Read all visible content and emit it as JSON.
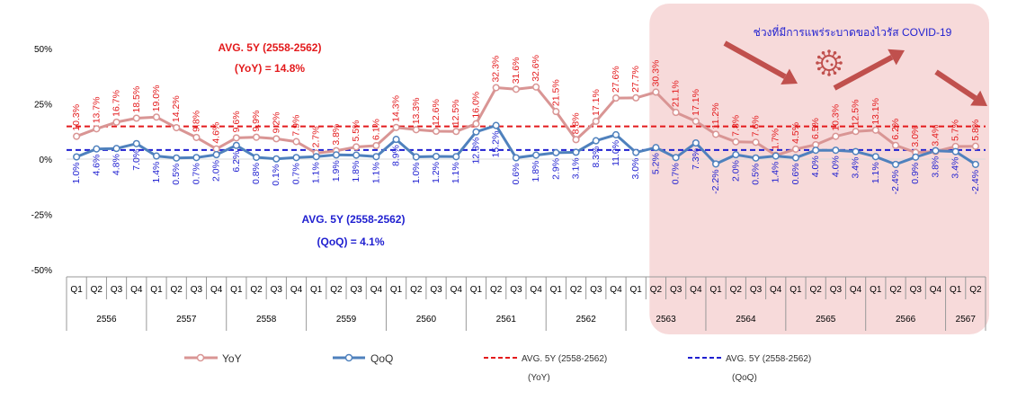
{
  "colors": {
    "yoy": "#d99594",
    "qoq": "#4f81bd",
    "avg_yoy": "#e31a1c",
    "avg_qoq": "#1f1fd0",
    "covid_bg": "#f7dada",
    "yoy_label": "#e31a1c",
    "qoq_label": "#1f1fd0",
    "covid_text": "#1f1fd0",
    "arrow": "#c0504d",
    "virus": "#c0504d"
  },
  "annotations": {
    "avg_yoy_title": "AVG. 5Y (2558-2562)",
    "avg_yoy_value": "(YoY) = 14.8%",
    "avg_qoq_title": "AVG. 5Y (2558-2562)",
    "avg_qoq_value": "(QoQ) = 4.1%",
    "covid_label": "ช่วงที่มีการแพร่ระบาดของไวรัส COVID-19"
  },
  "legend": {
    "yoy": "YoY",
    "qoq": "QoQ",
    "avg_yoy_line1": "AVG. 5Y (2558-2562)",
    "avg_yoy_line2": "(YoY)",
    "avg_qoq_line1": "AVG. 5Y (2558-2562)",
    "avg_qoq_line2": "(QoQ)"
  },
  "chart_data": {
    "type": "line",
    "y_ticks": [
      "50%",
      "25%",
      "0%",
      "-25%",
      "-50%"
    ],
    "ylim": [
      -50,
      50
    ],
    "quarters": [
      "Q1",
      "Q2",
      "Q3",
      "Q4",
      "Q1",
      "Q2",
      "Q3",
      "Q4",
      "Q1",
      "Q2",
      "Q3",
      "Q4",
      "Q1",
      "Q2",
      "Q3",
      "Q4",
      "Q1",
      "Q2",
      "Q3",
      "Q4",
      "Q1",
      "Q2",
      "Q3",
      "Q4",
      "Q1",
      "Q2",
      "Q3",
      "Q4",
      "Q1",
      "Q2",
      "Q3",
      "Q4",
      "Q1",
      "Q2",
      "Q3",
      "Q4",
      "Q1",
      "Q2",
      "Q3",
      "Q4",
      "Q1",
      "Q2",
      "Q3",
      "Q4",
      "Q1",
      "Q2"
    ],
    "years": [
      "2556",
      "2557",
      "2558",
      "2559",
      "2560",
      "2561",
      "2562",
      "2563",
      "2564",
      "2565",
      "2566",
      "2567"
    ],
    "series": [
      {
        "name": "YoY",
        "values": [
          10.3,
          13.7,
          16.7,
          18.5,
          19.0,
          14.2,
          9.8,
          4.6,
          9.6,
          9.9,
          9.2,
          7.9,
          2.7,
          3.8,
          5.5,
          6.1,
          14.3,
          13.3,
          12.6,
          12.5,
          16.0,
          32.3,
          31.6,
          32.6,
          21.5,
          8.8,
          17.1,
          27.6,
          27.7,
          30.3,
          21.1,
          17.1,
          11.2,
          7.8,
          7.6,
          1.7,
          4.5,
          6.5,
          10.3,
          12.5,
          13.1,
          6.2,
          3.0,
          3.4,
          5.7,
          5.8
        ],
        "labels": [
          "10.3%",
          "13.7%",
          "16.7%",
          "18.5%",
          "19.0%",
          "14.2%",
          "9.8%",
          "4.6%",
          "9.6%",
          "9.9%",
          "9.2%",
          "7.9%",
          "2.7%",
          "3.8%",
          "5.5%",
          "6.1%",
          "14.3%",
          "13.3%",
          "12.6%",
          "12.5%",
          "16.0%",
          "32.3%",
          "31.6%",
          "32.6%",
          "21.5%",
          "8.8%",
          "17.1%",
          "27.6%",
          "27.7%",
          "30.3%",
          "21.1%",
          "17.1%",
          "11.2%",
          "7.8%",
          "7.6%",
          "1.7%",
          "4.5%",
          "6.5%",
          "10.3%",
          "12.5%",
          "13.1%",
          "6.2%",
          "3.0%",
          "3.4%",
          "5.7%",
          "5.8%"
        ]
      },
      {
        "name": "QoQ",
        "values": [
          1.0,
          4.6,
          4.8,
          7.0,
          1.4,
          0.5,
          0.7,
          2.0,
          6.2,
          0.8,
          0.1,
          0.7,
          1.1,
          1.9,
          1.8,
          1.1,
          8.9,
          1.0,
          1.2,
          1.1,
          12.3,
          15.2,
          0.6,
          1.8,
          2.9,
          3.1,
          8.3,
          11.0,
          3.0,
          5.2,
          0.7,
          7.3,
          -2.2,
          2.0,
          0.5,
          1.4,
          0.6,
          4.0,
          4.0,
          3.4,
          1.1,
          -2.4,
          0.9,
          3.8,
          3.4,
          -2.4
        ],
        "labels": [
          "1.0%",
          "4.6%",
          "4.8%",
          "7.0%",
          "1.4%",
          "0.5%",
          "0.7%",
          "2.0%",
          "6.2%",
          "0.8%",
          "0.1%",
          "0.7%",
          "1.1%",
          "1.9%",
          "1.8%",
          "1.1%",
          "8.9%",
          "1.0%",
          "1.2%",
          "1.1%",
          "12.3%",
          "15.2%",
          "0.6%",
          "1.8%",
          "2.9%",
          "3.1%",
          "8.3%",
          "11.0%",
          "3.0%",
          "5.2%",
          "0.7%",
          "7.3%",
          "-2.2%",
          "2.0%",
          "0.5%",
          "1.4%",
          "0.6%",
          "4.0%",
          "4.0%",
          "3.4%",
          "1.1%",
          "-2.4%",
          "0.9%",
          "3.8%",
          "3.4%",
          "-2.4%"
        ]
      }
    ],
    "averages": [
      {
        "name": "AVG. 5Y (2558-2562) (YoY)",
        "value": 14.8
      },
      {
        "name": "AVG. 5Y (2558-2562) (QoQ)",
        "value": 4.1
      }
    ],
    "covid_period": {
      "start_index": 29,
      "end_index": 45
    },
    "grid": false,
    "legend_position": "bottom"
  }
}
